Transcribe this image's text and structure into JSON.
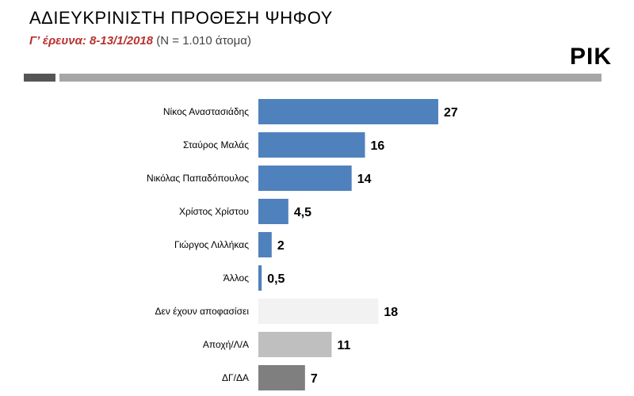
{
  "header": {
    "title": "ΑΔΙΕΥΚΡΙΝΙΣΤΗ ΠΡΟΘΕΣΗ ΨΗΦΟΥ",
    "survey": "Γ’ έρευνα: 8-13/1/2018",
    "sample": "(Ν = 1.010 άτομα)",
    "brand": "ΡΙΚ"
  },
  "colors": {
    "candidate": "#4f81bd",
    "undecided": "#f2f2f2",
    "abstain": "#bfbfbf",
    "dk_na": "#7f7f7f"
  },
  "chart_data": {
    "type": "bar",
    "orientation": "horizontal",
    "categories": [
      "Νίκος Αναστασιάδης",
      "Σταύρος Μαλάς",
      "Νικόλας Παπαδόπουλος",
      "Χρίστος Χρίστου",
      "Γιώργος Λιλλήκας",
      "Άλλος",
      "Δεν έχουν αποφασίσει",
      "Αποχή/Λ/Α",
      "ΔΓ/ΔΑ"
    ],
    "values": [
      27,
      16,
      14,
      4.5,
      2,
      0.5,
      18,
      11,
      7
    ],
    "value_labels": [
      "27",
      "16",
      "14",
      "4,5",
      "2",
      "0,5",
      "18",
      "11",
      "7"
    ],
    "bar_colors": [
      "#4f81bd",
      "#4f81bd",
      "#4f81bd",
      "#4f81bd",
      "#4f81bd",
      "#4f81bd",
      "#f2f2f2",
      "#bfbfbf",
      "#7f7f7f"
    ],
    "xlim": [
      0,
      27
    ],
    "grid": false,
    "legend": "none"
  }
}
